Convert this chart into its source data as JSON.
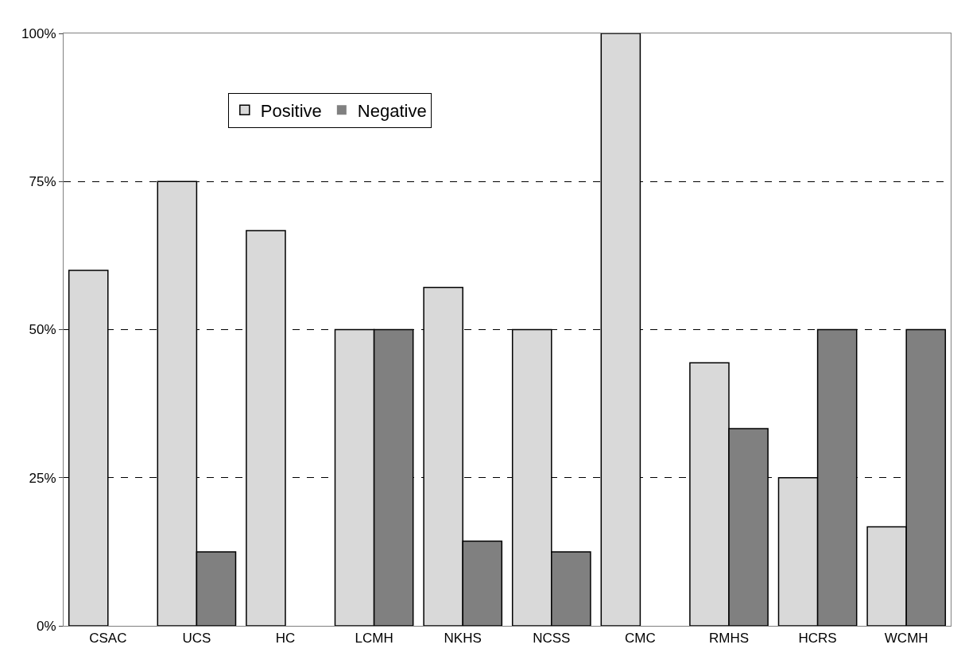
{
  "chart_data": {
    "type": "bar",
    "categories": [
      "CSAC",
      "UCS",
      "HC",
      "LCMH",
      "NKHS",
      "NCSS",
      "CMC",
      "RMHS",
      "HCRS",
      "WCMH"
    ],
    "series": [
      {
        "name": "Positive",
        "color": "#d9d9d9",
        "values": [
          60,
          75,
          66.7,
          50,
          57.1,
          50,
          100,
          44.4,
          25,
          16.7
        ]
      },
      {
        "name": "Negative",
        "color": "#808080",
        "values": [
          0,
          12.5,
          0,
          50,
          14.3,
          12.5,
          0,
          33.3,
          50,
          50
        ]
      }
    ],
    "ylim": [
      0,
      100
    ],
    "yticks": [
      {
        "value": 0,
        "label": "0%"
      },
      {
        "value": 25,
        "label": "25%"
      },
      {
        "value": 50,
        "label": "50%"
      },
      {
        "value": 75,
        "label": "75%"
      },
      {
        "value": 100,
        "label": "100%"
      }
    ],
    "grid": "y",
    "legend": "top"
  }
}
